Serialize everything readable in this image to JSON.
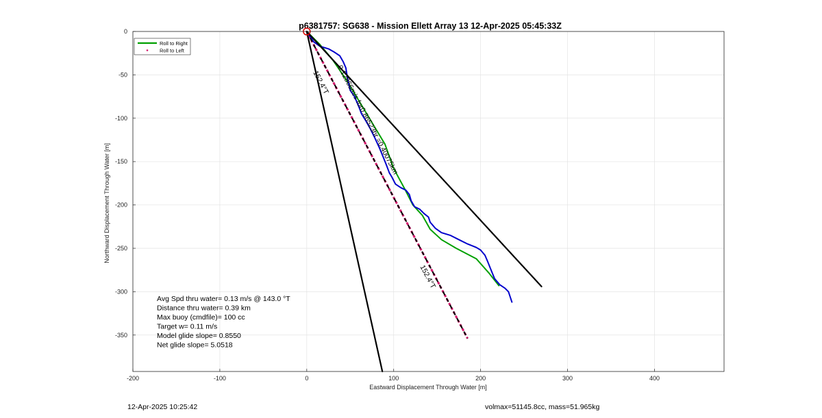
{
  "chart_data": {
    "type": "line",
    "title": "p6381757: SG638 - Mission Ellett Array 13 12-Apr-2025 05:45:33Z",
    "xlabel": "Eastward Displacement Through Water [m]",
    "ylabel": "Northward Displacement Through Water [m]",
    "xlim": [
      -200,
      480
    ],
    "ylim": [
      -392,
      0
    ],
    "x_ticks": [
      "-200",
      "-100",
      "0",
      "100",
      "200",
      "300",
      "400"
    ],
    "y_ticks": [
      "0",
      "-50",
      "-100",
      "-150",
      "-200",
      "-250",
      "-300",
      "-350"
    ],
    "grid": true,
    "legend": {
      "placement": "top-left",
      "entries": [
        {
          "label": "Roll to Right",
          "color": "#00a000"
        },
        {
          "label": "Roll to Left",
          "color": "#d4186c"
        }
      ]
    },
    "series": [
      {
        "name": "Roll to Right",
        "color": "#00a000",
        "x": [
          0,
          15,
          30,
          45,
          60,
          75,
          90,
          100,
          113,
          122,
          133,
          142,
          155,
          172,
          195,
          210,
          221
        ],
        "y": [
          0,
          -15,
          -33,
          -55,
          -80,
          -105,
          -130,
          -158,
          -182,
          -200,
          -212,
          -228,
          -240,
          -250,
          -262,
          -279,
          -293
        ]
      },
      {
        "name": "Roll to Left",
        "color": "#d4186c",
        "style": "dotted",
        "x": [
          0,
          185
        ],
        "y": [
          0,
          -354
        ]
      },
      {
        "color": "#0000cc",
        "x": [
          0,
          8,
          15,
          25,
          32,
          38,
          42,
          45,
          47,
          50,
          55,
          60,
          63,
          68,
          73,
          78,
          84,
          88,
          92,
          95,
          98,
          102,
          108,
          114,
          118,
          120,
          124,
          130,
          135,
          140,
          142,
          148,
          155,
          165,
          175,
          185,
          195,
          200,
          205,
          208,
          212,
          216,
          222,
          228,
          232,
          234,
          236
        ],
        "y": [
          0,
          -12,
          -17,
          -20,
          -24,
          -28,
          -35,
          -42,
          -55,
          -68,
          -75,
          -87,
          -95,
          -103,
          -112,
          -122,
          -135,
          -145,
          -155,
          -163,
          -168,
          -176,
          -180,
          -183,
          -188,
          -195,
          -202,
          -205,
          -210,
          -214,
          -220,
          -227,
          -232,
          -235,
          -240,
          -245,
          -249,
          -252,
          -258,
          -265,
          -275,
          -285,
          -292,
          -296,
          -300,
          -306,
          -312
        ]
      },
      {
        "color": "#000000",
        "x": [
          0,
          270
        ],
        "y": [
          0,
          -294
        ]
      },
      {
        "color": "#000000",
        "x": [
          0,
          87
        ],
        "y": [
          0,
          -392
        ]
      },
      {
        "color": "#000000",
        "style": "dashed",
        "x": [
          0,
          185
        ],
        "y": [
          0,
          -354
        ]
      }
    ],
    "start_marker": {
      "x": 0,
      "y": 0,
      "color": "#dd0000"
    },
    "annotations": [
      {
        "text": "152.4°T",
        "x": 14,
        "y": -60,
        "angle_deg": 62.4
      },
      {
        "text": "0.12866m/s for0.86523hr =0.40075km",
        "x": 68,
        "y": -103,
        "angle_deg": 62.4
      },
      {
        "text": "152.4°T",
        "x": 137,
        "y": -284,
        "angle_deg": 62.4
      }
    ],
    "stats_lines": [
      "Avg Spd thru water=  0.13 m/s @ 143.0 °T",
      "Distance thru water=  0.39 km",
      "Max buoy (cmdfile)= 100 cc",
      "Target w= 0.11 m/s",
      "Model glide slope= 0.8550",
      "Net glide slope= 5.0518"
    ]
  },
  "footer": {
    "timestamp": "12-Apr-2025 10:25:42",
    "mass_info": "volmax=51145.8cc, mass=51.965kg"
  }
}
